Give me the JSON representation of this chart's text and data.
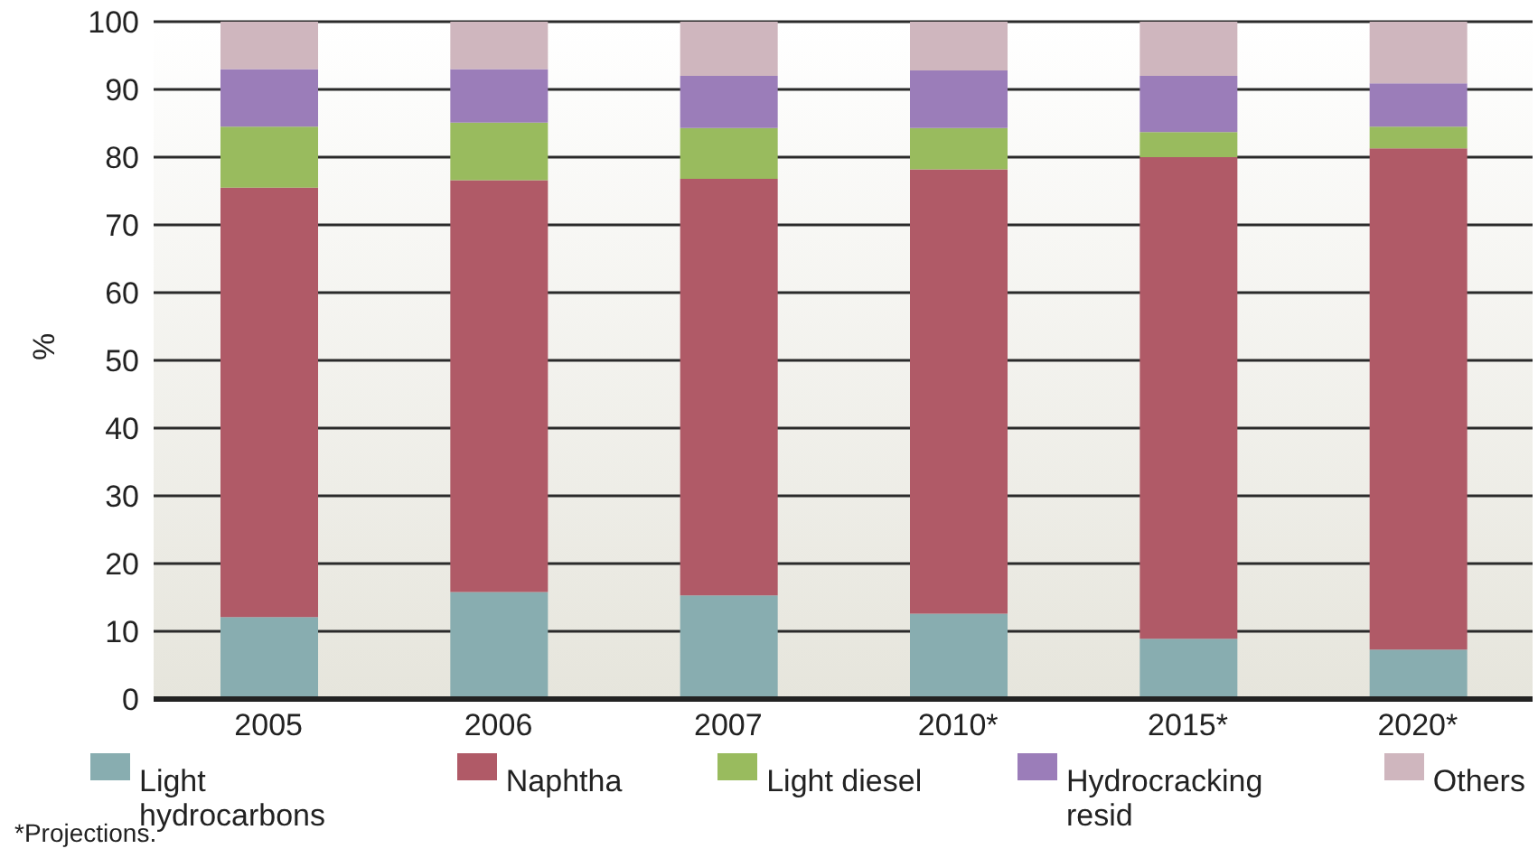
{
  "chart_data": {
    "type": "bar",
    "stacked": true,
    "ylabel": "%",
    "categories": [
      "2005",
      "2006",
      "2007",
      "2010*",
      "2015*",
      "2020*"
    ],
    "series": [
      {
        "name": "Light hydrocarbons",
        "color": "#88adb0",
        "values": [
          12.1,
          15.8,
          15.3,
          12.6,
          8.9,
          7.3
        ]
      },
      {
        "name": "Naphtha",
        "color": "#b05a67",
        "values": [
          63.4,
          60.8,
          61.5,
          65.6,
          71.1,
          74.0
        ]
      },
      {
        "name": "Light diesel",
        "color": "#99bb5e",
        "values": [
          9.0,
          8.5,
          7.5,
          6.1,
          3.7,
          3.2
        ]
      },
      {
        "name": "Hydrocracking resid",
        "color": "#9b7db9",
        "values": [
          8.5,
          7.9,
          7.7,
          8.5,
          8.3,
          6.4
        ]
      },
      {
        "name": "Others",
        "color": "#cfb6be",
        "values": [
          7.0,
          7.0,
          8.0,
          7.2,
          8.4,
          9.1
        ]
      }
    ],
    "ylim": [
      0,
      100
    ],
    "yticks": [
      0,
      10,
      20,
      30,
      40,
      50,
      60,
      70,
      80,
      90,
      100
    ],
    "grid": "y",
    "legend": "bottom",
    "annotations": [
      "*Projections."
    ]
  }
}
